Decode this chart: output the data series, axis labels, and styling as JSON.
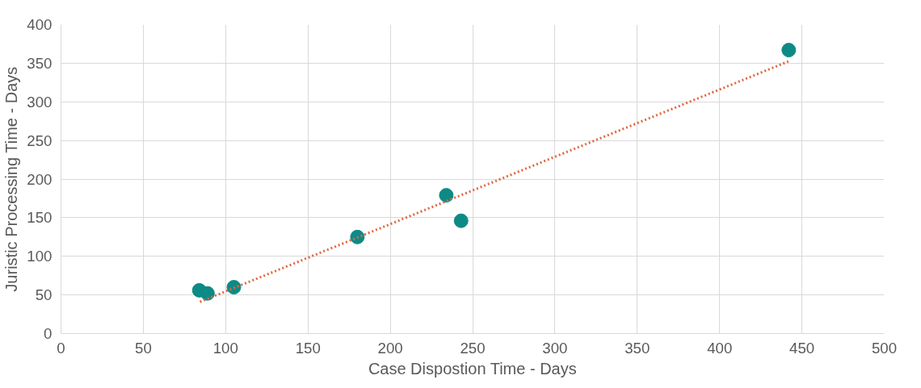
{
  "chart_data": {
    "type": "scatter",
    "xlabel": "Case Dispostion Time - Days",
    "ylabel": "Juristic Processing Time - Days",
    "xlim": [
      0,
      500
    ],
    "xticks": [
      0,
      50,
      100,
      150,
      200,
      250,
      300,
      350,
      400,
      450,
      500
    ],
    "ylim": [
      0,
      400
    ],
    "yticks": [
      0,
      50,
      100,
      150,
      200,
      250,
      300,
      350,
      400
    ],
    "grid": true,
    "marker": "circle",
    "series": [
      {
        "color": "#0e8a86",
        "x": [
          84,
          89,
          105,
          180,
          234,
          243,
          442
        ],
        "values": [
          56,
          52,
          60,
          125,
          179,
          146,
          367
        ]
      },
      {
        "type": "line",
        "color": "#e0673f",
        "line_style": "dotted",
        "marker": "none",
        "x": [
          84.4,
          442.5
        ],
        "values": [
          41,
          353
        ]
      }
    ]
  }
}
